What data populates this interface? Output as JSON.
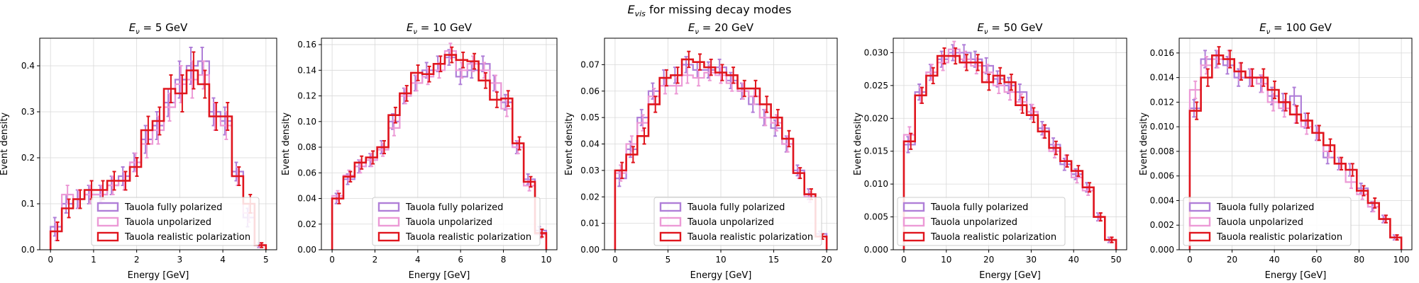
{
  "figure": {
    "title": "E_vis for missing decay modes",
    "title_main": "E",
    "title_sub": "vis",
    "title_rest": " for missing decay modes"
  },
  "colors": {
    "Tauola fully polarized": "#b07fd8",
    "Tauola unpolarized": "#ec9ad6",
    "Tauola realistic polarization": "#e0151d"
  },
  "chart_data": [
    {
      "type": "histogram",
      "title": "E_ν = 5 GeV",
      "title_rhs": "5 GeV",
      "xlabel": "Energy [GeV]",
      "ylabel": "Event density",
      "xlim": [
        -0.25,
        5.25
      ],
      "ylim": [
        0,
        0.46
      ],
      "xticks": [
        "0",
        "1",
        "2",
        "3",
        "4",
        "5"
      ],
      "xtick_values": [
        0,
        1,
        2,
        3,
        4,
        5
      ],
      "yticks": [
        "0.0",
        "0.1",
        "0.2",
        "0.3",
        "0.4"
      ],
      "ytick_values": [
        0,
        0.1,
        0.2,
        0.3,
        0.4
      ],
      "legend_position": "lower center",
      "bin_edges": [
        0,
        0.263,
        0.526,
        0.789,
        1.053,
        1.316,
        1.579,
        1.842,
        2.105,
        2.368,
        2.632,
        2.895,
        3.158,
        3.421,
        3.684,
        3.947,
        4.211,
        4.474,
        4.737,
        5.0
      ],
      "series": [
        {
          "name": "Tauola fully polarized",
          "values": [
            0.05,
            0.1,
            0.11,
            0.12,
            0.12,
            0.14,
            0.16,
            0.19,
            0.24,
            0.27,
            0.32,
            0.37,
            0.4,
            0.41,
            0.3,
            0.28,
            0.17,
            0.07,
            0.01
          ],
          "errors": [
            0.02,
            0.02,
            0.02,
            0.02,
            0.02,
            0.02,
            0.02,
            0.02,
            0.03,
            0.03,
            0.03,
            0.04,
            0.04,
            0.03,
            0.03,
            0.03,
            0.02,
            0.02,
            0.005
          ]
        },
        {
          "name": "Tauola unpolarized",
          "values": [
            0.04,
            0.12,
            0.11,
            0.12,
            0.12,
            0.14,
            0.15,
            0.19,
            0.23,
            0.26,
            0.31,
            0.36,
            0.37,
            0.38,
            0.29,
            0.27,
            0.16,
            0.08,
            0.01
          ],
          "errors": [
            0.02,
            0.02,
            0.02,
            0.02,
            0.02,
            0.02,
            0.02,
            0.02,
            0.03,
            0.03,
            0.03,
            0.04,
            0.04,
            0.03,
            0.03,
            0.03,
            0.02,
            0.02,
            0.005
          ]
        },
        {
          "name": "Tauola realistic polarization",
          "values": [
            0.04,
            0.09,
            0.11,
            0.13,
            0.13,
            0.15,
            0.15,
            0.18,
            0.26,
            0.28,
            0.35,
            0.34,
            0.39,
            0.36,
            0.29,
            0.29,
            0.16,
            0.1,
            0.01
          ],
          "errors": [
            0.02,
            0.02,
            0.02,
            0.02,
            0.02,
            0.02,
            0.02,
            0.02,
            0.03,
            0.03,
            0.03,
            0.04,
            0.04,
            0.03,
            0.03,
            0.03,
            0.02,
            0.02,
            0.005
          ]
        }
      ]
    },
    {
      "type": "histogram",
      "title": "E_ν = 10 GeV",
      "title_rhs": "10 GeV",
      "xlabel": "Energy [GeV]",
      "ylabel": "Event density",
      "xlim": [
        -0.5,
        10.5
      ],
      "ylim": [
        0,
        0.165
      ],
      "xticks": [
        "0",
        "2",
        "4",
        "6",
        "8",
        "10"
      ],
      "xtick_values": [
        0,
        2,
        4,
        6,
        8,
        10
      ],
      "yticks": [
        "0.00",
        "0.02",
        "0.04",
        "0.06",
        "0.08",
        "0.10",
        "0.12",
        "0.14",
        "0.16"
      ],
      "ytick_values": [
        0,
        0.02,
        0.04,
        0.06,
        0.08,
        0.1,
        0.12,
        0.14,
        0.16
      ],
      "legend_position": "lower center",
      "bin_edges": [
        0,
        0.526,
        1.053,
        1.579,
        2.105,
        2.632,
        3.158,
        3.684,
        4.211,
        4.737,
        5.263,
        5.789,
        6.316,
        6.842,
        7.368,
        7.895,
        8.421,
        8.947,
        9.474,
        10.0
      ],
      "series": [
        {
          "name": "Tauola fully polarized",
          "values": [
            0.04,
            0.055,
            0.065,
            0.07,
            0.08,
            0.1,
            0.12,
            0.13,
            0.14,
            0.145,
            0.15,
            0.135,
            0.14,
            0.145,
            0.13,
            0.115,
            0.08,
            0.055,
            0.015
          ],
          "errors": [
            0.004,
            0.004,
            0.005,
            0.005,
            0.005,
            0.006,
            0.006,
            0.006,
            0.006,
            0.006,
            0.006,
            0.006,
            0.006,
            0.006,
            0.006,
            0.006,
            0.005,
            0.004,
            0.003
          ]
        },
        {
          "name": "Tauola unpolarized",
          "values": [
            0.042,
            0.058,
            0.065,
            0.07,
            0.078,
            0.095,
            0.12,
            0.13,
            0.135,
            0.14,
            0.155,
            0.14,
            0.145,
            0.14,
            0.13,
            0.11,
            0.08,
            0.05,
            0.012
          ],
          "errors": [
            0.004,
            0.004,
            0.005,
            0.005,
            0.005,
            0.006,
            0.006,
            0.006,
            0.006,
            0.006,
            0.006,
            0.006,
            0.006,
            0.006,
            0.006,
            0.006,
            0.005,
            0.004,
            0.003
          ]
        },
        {
          "name": "Tauola realistic polarization",
          "values": [
            0.04,
            0.057,
            0.068,
            0.072,
            0.08,
            0.105,
            0.122,
            0.138,
            0.137,
            0.145,
            0.152,
            0.148,
            0.147,
            0.132,
            0.117,
            0.118,
            0.083,
            0.053,
            0.013
          ],
          "errors": [
            0.004,
            0.004,
            0.005,
            0.005,
            0.005,
            0.006,
            0.006,
            0.006,
            0.006,
            0.006,
            0.006,
            0.006,
            0.006,
            0.006,
            0.006,
            0.006,
            0.005,
            0.004,
            0.003
          ]
        }
      ]
    },
    {
      "type": "histogram",
      "title": "E_ν = 20 GeV",
      "title_rhs": "20 GeV",
      "xlabel": "Energy [GeV]",
      "ylabel": "Event density",
      "xlim": [
        -1.0,
        21.0
      ],
      "ylim": [
        0,
        0.08
      ],
      "xticks": [
        "0",
        "5",
        "10",
        "15",
        "20"
      ],
      "xtick_values": [
        0,
        5,
        10,
        15,
        20
      ],
      "yticks": [
        "0.00",
        "0.01",
        "0.02",
        "0.03",
        "0.04",
        "0.05",
        "0.06",
        "0.07"
      ],
      "ytick_values": [
        0,
        0.01,
        0.02,
        0.03,
        0.04,
        0.05,
        0.06,
        0.07
      ],
      "legend_position": "lower center",
      "bin_edges": [
        0,
        1.053,
        2.105,
        3.158,
        4.211,
        5.263,
        6.316,
        7.368,
        8.421,
        9.474,
        10.526,
        11.579,
        12.632,
        13.684,
        14.737,
        15.789,
        16.842,
        17.895,
        18.947,
        20.0
      ],
      "series": [
        {
          "name": "Tauola fully polarized",
          "values": [
            0.027,
            0.038,
            0.05,
            0.06,
            0.065,
            0.066,
            0.07,
            0.068,
            0.068,
            0.069,
            0.064,
            0.06,
            0.055,
            0.05,
            0.046,
            0.04,
            0.03,
            0.021,
            0.006
          ],
          "errors": [
            0.003,
            0.003,
            0.003,
            0.003,
            0.003,
            0.003,
            0.003,
            0.003,
            0.003,
            0.003,
            0.003,
            0.003,
            0.003,
            0.003,
            0.003,
            0.003,
            0.002,
            0.002,
            0.001
          ]
        },
        {
          "name": "Tauola unpolarized",
          "values": [
            0.029,
            0.04,
            0.048,
            0.058,
            0.062,
            0.062,
            0.066,
            0.065,
            0.067,
            0.066,
            0.063,
            0.06,
            0.058,
            0.05,
            0.048,
            0.04,
            0.029,
            0.02,
            0.005
          ],
          "errors": [
            0.003,
            0.003,
            0.003,
            0.003,
            0.003,
            0.003,
            0.003,
            0.003,
            0.003,
            0.003,
            0.003,
            0.003,
            0.003,
            0.003,
            0.003,
            0.003,
            0.002,
            0.002,
            0.001
          ]
        },
        {
          "name": "Tauola realistic polarization",
          "values": [
            0.03,
            0.036,
            0.043,
            0.055,
            0.065,
            0.066,
            0.072,
            0.071,
            0.069,
            0.067,
            0.066,
            0.061,
            0.061,
            0.055,
            0.05,
            0.042,
            0.029,
            0.021,
            0.005
          ],
          "errors": [
            0.003,
            0.003,
            0.003,
            0.003,
            0.003,
            0.003,
            0.003,
            0.003,
            0.003,
            0.003,
            0.003,
            0.003,
            0.003,
            0.003,
            0.003,
            0.003,
            0.002,
            0.002,
            0.001
          ]
        }
      ]
    },
    {
      "type": "histogram",
      "title": "E_ν = 50 GeV",
      "title_rhs": "50 GeV",
      "xlabel": "Energy [GeV]",
      "ylabel": "Event density",
      "xlim": [
        -2.5,
        52.5
      ],
      "ylim": [
        0,
        0.0322
      ],
      "xticks": [
        "0",
        "10",
        "20",
        "30",
        "40",
        "50"
      ],
      "xtick_values": [
        0,
        10,
        20,
        30,
        40,
        50
      ],
      "yticks": [
        "0.000",
        "0.005",
        "0.010",
        "0.015",
        "0.020",
        "0.025",
        "0.030"
      ],
      "ytick_values": [
        0,
        0.005,
        0.01,
        0.015,
        0.02,
        0.025,
        0.03
      ],
      "legend_position": "lower left",
      "bin_edges": [
        0,
        2.632,
        5.263,
        7.895,
        10.526,
        13.158,
        15.789,
        18.421,
        21.053,
        23.684,
        26.316,
        28.947,
        31.579,
        34.211,
        36.842,
        39.474,
        42.105,
        44.737,
        47.368,
        50.0
      ],
      "series": [
        {
          "name": "Tauola fully polarized",
          "values": [
            0.016,
            0.024,
            0.027,
            0.029,
            0.03,
            0.03,
            0.029,
            0.028,
            0.026,
            0.025,
            0.024,
            0.021,
            0.0185,
            0.016,
            0.013,
            0.0115,
            0.0095,
            0.005,
            0.0015
          ],
          "errors": [
            0.0012,
            0.0012,
            0.0012,
            0.0012,
            0.0012,
            0.0012,
            0.0012,
            0.0012,
            0.0012,
            0.0012,
            0.0012,
            0.0011,
            0.001,
            0.001,
            0.0009,
            0.0008,
            0.0007,
            0.0006,
            0.0004
          ]
        },
        {
          "name": "Tauola unpolarized",
          "values": [
            0.0175,
            0.0235,
            0.027,
            0.0285,
            0.0305,
            0.029,
            0.028,
            0.027,
            0.025,
            0.024,
            0.0225,
            0.021,
            0.018,
            0.015,
            0.0135,
            0.011,
            0.009,
            0.005,
            0.0015
          ],
          "errors": [
            0.0012,
            0.0012,
            0.0012,
            0.0012,
            0.0012,
            0.0012,
            0.0012,
            0.0012,
            0.0012,
            0.0012,
            0.0012,
            0.0011,
            0.001,
            0.001,
            0.0009,
            0.0008,
            0.0007,
            0.0006,
            0.0004
          ]
        },
        {
          "name": "Tauola realistic polarization",
          "values": [
            0.0165,
            0.0235,
            0.0265,
            0.0295,
            0.0295,
            0.0285,
            0.0285,
            0.0255,
            0.0265,
            0.0255,
            0.022,
            0.0205,
            0.018,
            0.0155,
            0.0135,
            0.012,
            0.0095,
            0.005,
            0.0015
          ],
          "errors": [
            0.0012,
            0.0012,
            0.0012,
            0.0012,
            0.0012,
            0.0012,
            0.0012,
            0.0012,
            0.0012,
            0.0012,
            0.0012,
            0.0011,
            0.001,
            0.001,
            0.0009,
            0.0008,
            0.0007,
            0.0006,
            0.0004
          ]
        }
      ]
    },
    {
      "type": "histogram",
      "title": "E_ν = 100 GeV",
      "title_rhs": "100 GeV",
      "xlabel": "Energy [GeV]",
      "ylabel": "Event density",
      "xlim": [
        -5.0,
        105.0
      ],
      "ylim": [
        0,
        0.0172
      ],
      "xticks": [
        "0",
        "20",
        "40",
        "60",
        "80",
        "100"
      ],
      "xtick_values": [
        0,
        20,
        40,
        60,
        80,
        100
      ],
      "yticks": [
        "0.000",
        "0.002",
        "0.004",
        "0.006",
        "0.008",
        "0.010",
        "0.012",
        "0.014",
        "0.016"
      ],
      "ytick_values": [
        0,
        0.002,
        0.004,
        0.006,
        0.008,
        0.01,
        0.012,
        0.014,
        0.016
      ],
      "legend_position": "lower left",
      "bin_edges": [
        0,
        5.263,
        10.526,
        15.789,
        21.053,
        26.316,
        31.579,
        36.842,
        42.105,
        47.368,
        52.632,
        57.895,
        63.158,
        68.421,
        73.684,
        78.947,
        84.211,
        89.474,
        94.737,
        100.0
      ],
      "series": [
        {
          "name": "Tauola fully polarized",
          "values": [
            0.0115,
            0.0155,
            0.0155,
            0.015,
            0.014,
            0.014,
            0.0135,
            0.0125,
            0.012,
            0.0125,
            0.0105,
            0.0095,
            0.0075,
            0.007,
            0.0065,
            0.005,
            0.0035,
            0.0025,
            0.001
          ],
          "errors": [
            0.0007,
            0.0007,
            0.0007,
            0.0007,
            0.0007,
            0.0007,
            0.0007,
            0.0007,
            0.0007,
            0.0007,
            0.0006,
            0.0006,
            0.0005,
            0.0005,
            0.0005,
            0.0004,
            0.0004,
            0.0003,
            0.0002
          ]
        },
        {
          "name": "Tauola unpolarized",
          "values": [
            0.013,
            0.015,
            0.0155,
            0.0155,
            0.0145,
            0.014,
            0.0135,
            0.012,
            0.0115,
            0.011,
            0.01,
            0.0095,
            0.008,
            0.007,
            0.0055,
            0.0045,
            0.0035,
            0.0025,
            0.001
          ],
          "errors": [
            0.0007,
            0.0007,
            0.0007,
            0.0007,
            0.0007,
            0.0007,
            0.0007,
            0.0007,
            0.0007,
            0.0007,
            0.0006,
            0.0006,
            0.0005,
            0.0005,
            0.0005,
            0.0004,
            0.0004,
            0.0003,
            0.0002
          ]
        },
        {
          "name": "Tauola realistic polarization",
          "values": [
            0.0113,
            0.014,
            0.0158,
            0.0155,
            0.0145,
            0.014,
            0.014,
            0.013,
            0.012,
            0.011,
            0.0105,
            0.0095,
            0.0085,
            0.007,
            0.0065,
            0.0048,
            0.0038,
            0.0025,
            0.001
          ],
          "errors": [
            0.0007,
            0.0007,
            0.0007,
            0.0007,
            0.0007,
            0.0007,
            0.0007,
            0.0007,
            0.0007,
            0.0007,
            0.0006,
            0.0006,
            0.0005,
            0.0005,
            0.0005,
            0.0004,
            0.0004,
            0.0003,
            0.0002
          ]
        }
      ]
    }
  ]
}
